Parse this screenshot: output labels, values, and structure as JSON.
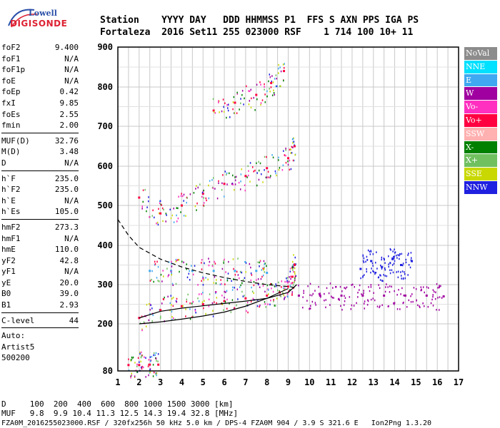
{
  "logo": {
    "line1": "Lowell",
    "line2": "DIGISONDE"
  },
  "header": {
    "labels": "Station    YYYY DAY   DDD HHMMSS P1  FFS S AXN PPS IGA PS",
    "values": "Fortaleza  2016 Set11 255 023000 RSF    1 714 100 10+ 11"
  },
  "params": [
    {
      "group": [
        {
          "name": "foF2",
          "value": "9.400"
        },
        {
          "name": "foF1",
          "value": "N/A"
        },
        {
          "name": "foF1p",
          "value": "N/A"
        },
        {
          "name": "foE",
          "value": "N/A"
        },
        {
          "name": "foEp",
          "value": "0.42"
        },
        {
          "name": "fxI",
          "value": "9.85"
        },
        {
          "name": "foEs",
          "value": "2.55"
        },
        {
          "name": "fmin",
          "value": "2.00"
        }
      ]
    },
    {
      "group": [
        {
          "name": "MUF(D)",
          "value": "32.76"
        },
        {
          "name": "M(D)",
          "value": "3.48"
        },
        {
          "name": "D",
          "value": "N/A"
        }
      ]
    },
    {
      "group": [
        {
          "name": "h`F",
          "value": "235.0"
        },
        {
          "name": "h`F2",
          "value": "235.0"
        },
        {
          "name": "h`E",
          "value": "N/A"
        },
        {
          "name": "h`Es",
          "value": "105.0"
        }
      ]
    },
    {
      "group": [
        {
          "name": "hmF2",
          "value": "273.3"
        },
        {
          "name": "hmF1",
          "value": "N/A"
        },
        {
          "name": "hmE",
          "value": "110.0"
        },
        {
          "name": "yF2",
          "value": "42.8"
        },
        {
          "name": "yF1",
          "value": "N/A"
        },
        {
          "name": "yE",
          "value": "20.0"
        },
        {
          "name": "B0",
          "value": "39.0"
        },
        {
          "name": "B1",
          "value": "2.93"
        }
      ]
    },
    {
      "group": [
        {
          "name": "C-level",
          "value": "44"
        }
      ]
    }
  ],
  "auto": {
    "line1": "Auto:",
    "line2": "Artist5",
    "line3": "500200"
  },
  "legend": [
    {
      "label": "NoVal",
      "color": "#8c8c8c"
    },
    {
      "label": "NNE",
      "color": "#00e0ff"
    },
    {
      "label": "E",
      "color": "#40a8f0"
    },
    {
      "label": "W",
      "color": "#a000a0"
    },
    {
      "label": "Vo-",
      "color": "#ff30c0"
    },
    {
      "label": "Vo+",
      "color": "#ff0040"
    },
    {
      "label": "SSW",
      "color": "#ffb0b0"
    },
    {
      "label": "X-",
      "color": "#008000"
    },
    {
      "label": "X+",
      "color": "#70c060"
    },
    {
      "label": "SSE",
      "color": "#c8d800"
    },
    {
      "label": "NNW",
      "color": "#2020e0"
    }
  ],
  "footer": {
    "d_row": "D     100  200  400  600  800 1000 1500 3000 [km]",
    "muf_row": "MUF   9.8  9.9 10.4 11.3 12.5 14.3 19.4 32.8 [MHz]",
    "file_row": "FZA0M_2016255023000.RSF / 320fx256h 50 kHz 5.0 km / DPS-4 FZA0M 904 / 3.9 S 321.6 E   Ion2Png 1.3.20"
  },
  "chart_data": {
    "type": "scatter",
    "xlim": [
      1,
      17
    ],
    "ylim": [
      80,
      900
    ],
    "x_ticks": [
      "1",
      "2",
      "3",
      "4",
      "5",
      "6",
      "7",
      "8",
      "9",
      "10",
      "11",
      "12",
      "13",
      "14",
      "15",
      "16",
      "17"
    ],
    "y_ticks": [
      "80",
      "200",
      "300",
      "400",
      "500",
      "600",
      "700",
      "800",
      "900"
    ],
    "y_tick_values": [
      80,
      200,
      300,
      400,
      500,
      600,
      700,
      800,
      900
    ],
    "grid": true,
    "traces": [
      {
        "name": "Vo+",
        "x": [
          2.0,
          3.0,
          4.0,
          5.0,
          6.0,
          7.0,
          8.0,
          8.6,
          9.0,
          9.2,
          9.3
        ],
        "y": [
          215,
          235,
          245,
          250,
          258,
          265,
          272,
          280,
          295,
          320,
          350
        ]
      },
      {
        "name": "Vo+",
        "x": [
          2.0,
          3.0,
          4.0,
          5.0,
          6.0,
          7.0,
          8.0,
          9.0,
          9.3
        ],
        "y": [
          520,
          480,
          500,
          530,
          555,
          575,
          595,
          620,
          650
        ]
      },
      {
        "name": "E",
        "x": [
          2.5,
          3.5,
          4.5,
          5.5,
          6.5,
          7.5,
          8.0
        ],
        "y": [
          335,
          335,
          335,
          335,
          335,
          335,
          330
        ]
      },
      {
        "name": "W",
        "x": [
          9.5,
          10.5,
          11.5,
          12.5,
          13.5,
          14.5,
          15.5,
          16.3
        ],
        "y": [
          272,
          272,
          272,
          272,
          272,
          272,
          272,
          270
        ]
      },
      {
        "name": "NNW",
        "x": [
          12.4,
          12.9,
          13.4,
          13.9,
          14.3,
          14.8
        ],
        "y": [
          340,
          360,
          345,
          365,
          350,
          360
        ]
      },
      {
        "name": "Vo+",
        "x": [
          5.5,
          6.5,
          7.5,
          8.2,
          8.8
        ],
        "y": [
          740,
          760,
          780,
          810,
          840
        ]
      },
      {
        "name": "Vo+",
        "x": [
          1.5,
          2.0,
          2.5,
          2.9
        ],
        "y": [
          95,
          95,
          96,
          96
        ]
      }
    ],
    "fits": [
      {
        "x": [
          2.0,
          3.0,
          4.0,
          5.0,
          6.0,
          7.0,
          8.0,
          9.0,
          9.4
        ],
        "y": [
          215,
          232,
          240,
          246,
          252,
          258,
          265,
          280,
          300
        ],
        "style": "solid"
      },
      {
        "x": [
          1.0,
          1.5,
          2.0,
          3.0,
          4.0,
          5.0,
          6.0,
          7.0,
          8.0,
          9.0,
          9.4
        ],
        "y": [
          465,
          425,
          395,
          365,
          345,
          330,
          318,
          308,
          300,
          295,
          292
        ],
        "style": "dashed"
      },
      {
        "x": [
          2.0,
          3.0,
          4.0,
          5.0,
          6.0,
          7.0,
          8.0,
          9.0
        ],
        "y": [
          200,
          205,
          212,
          220,
          230,
          245,
          265,
          290
        ],
        "style": "solid"
      }
    ]
  }
}
